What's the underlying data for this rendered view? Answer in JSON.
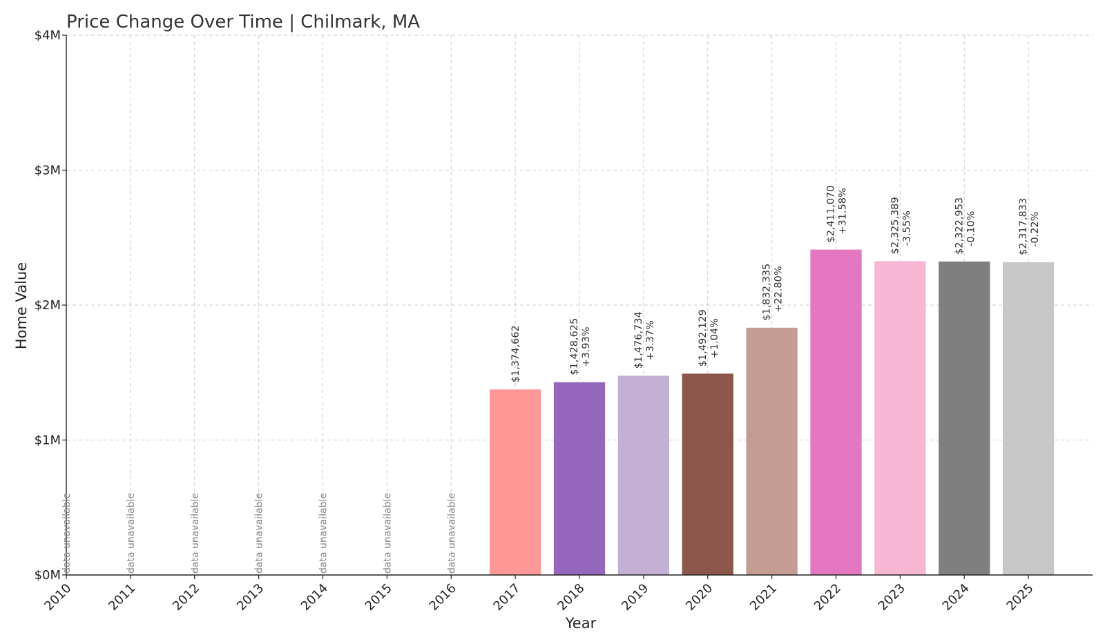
{
  "chart_data": {
    "type": "bar",
    "title": "Price Change Over Time | Chilmark, MA",
    "xlabel": "Year",
    "ylabel": "Home Value",
    "ylim": [
      0,
      4000000
    ],
    "yticks": [
      {
        "value": 0,
        "label": "$0M"
      },
      {
        "value": 1000000,
        "label": "$1M"
      },
      {
        "value": 2000000,
        "label": "$2M"
      },
      {
        "value": 3000000,
        "label": "$3M"
      },
      {
        "value": 4000000,
        "label": "$4M"
      }
    ],
    "grid": true,
    "unavailable_label": "data unavailable",
    "categories": [
      "2010",
      "2011",
      "2012",
      "2013",
      "2014",
      "2015",
      "2016",
      "2017",
      "2018",
      "2019",
      "2020",
      "2021",
      "2022",
      "2023",
      "2024",
      "2025"
    ],
    "values": [
      null,
      null,
      null,
      null,
      null,
      null,
      null,
      1374662,
      1428625,
      1476734,
      1492129,
      1832335,
      2411070,
      2325389,
      2322953,
      2317833
    ],
    "value_labels": [
      "",
      "",
      "",
      "",
      "",
      "",
      "",
      "$1,374,662",
      "$1,428,625",
      "$1,476,734",
      "$1,492,129",
      "$1,832,335",
      "$2,411,070",
      "$2,325,389",
      "$2,322,953",
      "$2,317,833"
    ],
    "change_labels": [
      "",
      "",
      "",
      "",
      "",
      "",
      "",
      "",
      "+3.93%",
      "+3.37%",
      "+1.04%",
      "+22.80%",
      "+31.58%",
      "-3.55%",
      "-0.10%",
      "-0.22%"
    ],
    "colors": [
      "#1f77b4",
      "#aec7e8",
      "#ff7f0e",
      "#ffbb78",
      "#2ca02c",
      "#98df8a",
      "#d62728",
      "#ff9896",
      "#9467bd",
      "#c5b0d5",
      "#8c564b",
      "#c49c94",
      "#e377c2",
      "#f7b6d2",
      "#7f7f7f",
      "#c7c7c7"
    ]
  }
}
